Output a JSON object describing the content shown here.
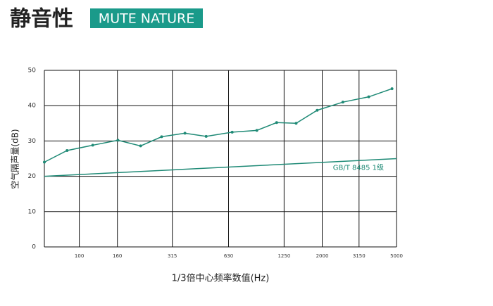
{
  "chart_data": {
    "type": "line",
    "title": "静音性",
    "subtitle": "MUTE NATURE",
    "x_label": "1/3倍中心频率数值(Hz)",
    "y_label": "空气隔声量(dB)",
    "xscale": "log",
    "xlim": [
      65,
      5000
    ],
    "xticks": [
      100,
      160,
      315,
      630,
      1250,
      2000,
      3150,
      5000
    ],
    "ylim": [
      0,
      50
    ],
    "yticks": [
      0,
      10,
      20,
      30,
      40,
      50
    ],
    "grid": true,
    "series": [
      {
        "color": "#1f8a76",
        "markers": true,
        "x": [
          65,
          86,
          118,
          161,
          213,
          276,
          368,
          478,
          659,
          893,
          1140,
          1450,
          1880,
          2580,
          3550,
          4730
        ],
        "values": [
          24,
          27.3,
          28.8,
          30.2,
          28.6,
          31.2,
          32.2,
          31.3,
          32.5,
          33,
          35.2,
          35,
          38.7,
          41,
          42.5,
          44.8
        ]
      },
      {
        "name": "GB/T 8485 1级",
        "color": "#1f8a76",
        "markers": false,
        "x": [
          65,
          5000
        ],
        "values": [
          20,
          25
        ]
      }
    ]
  }
}
